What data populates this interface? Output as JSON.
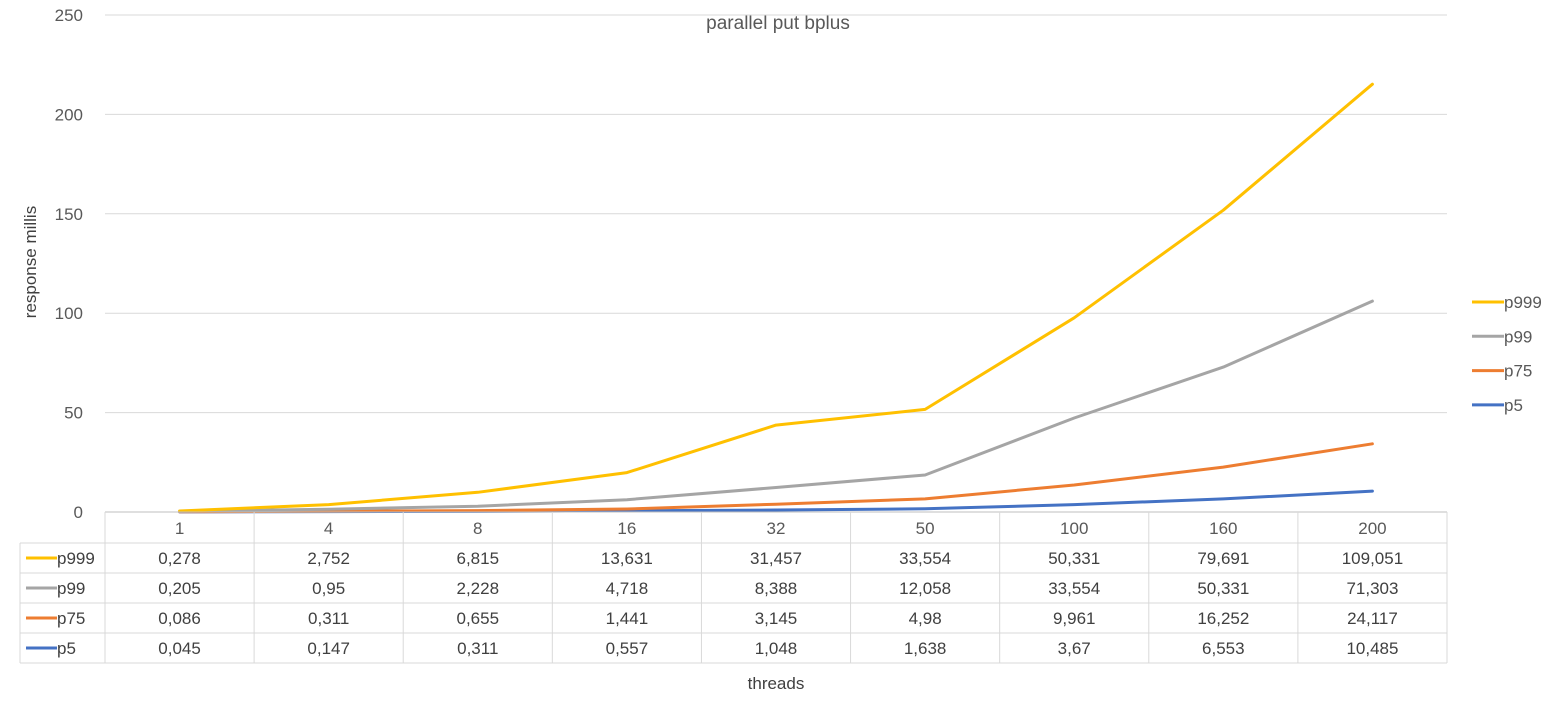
{
  "chart_data": {
    "type": "line",
    "title": "parallel put bplus",
    "xlabel": "threads",
    "ylabel": "response millis",
    "categories": [
      "1",
      "4",
      "8",
      "16",
      "32",
      "50",
      "100",
      "160",
      "200"
    ],
    "ylim": [
      0,
      250
    ],
    "yticks": [
      0,
      50,
      100,
      150,
      200,
      250
    ],
    "grid": true,
    "legend_position": "right",
    "series": [
      {
        "name": "p999",
        "color": "#FFC000",
        "values": [
          0.278,
          2.752,
          6.815,
          13.631,
          31.457,
          33.554,
          50.331,
          79.691,
          109.051
        ],
        "plotted": [
          0.5,
          3.7,
          9.9,
          19.8,
          43.7,
          51.6,
          97.7,
          151.8,
          215.2
        ],
        "labels": [
          "0,278",
          "2,752",
          "6,815",
          "13,631",
          "31,457",
          "33,554",
          "50,331",
          "79,691",
          "109,051"
        ]
      },
      {
        "name": "p99",
        "color": "#A5A5A5",
        "values": [
          0.205,
          0.95,
          2.228,
          4.718,
          8.388,
          12.058,
          33.554,
          50.331,
          71.303
        ],
        "plotted": [
          0.3,
          1.4,
          2.9,
          6.2,
          12.3,
          18.6,
          47.3,
          72.9,
          106.1
        ],
        "labels": [
          "0,205",
          "0,95",
          "2,228",
          "4,718",
          "8,388",
          "12,058",
          "33,554",
          "50,331",
          "71,303"
        ]
      },
      {
        "name": "p75",
        "color": "#ED7D31",
        "values": [
          0.086,
          0.311,
          0.655,
          1.441,
          3.145,
          4.98,
          9.961,
          16.252,
          24.117
        ],
        "plotted": [
          0.1,
          0.4,
          0.7,
          1.5,
          3.9,
          6.6,
          13.6,
          22.6,
          34.3
        ],
        "labels": [
          "0,086",
          "0,311",
          "0,655",
          "1,441",
          "3,145",
          "4,98",
          "9,961",
          "16,252",
          "24,117"
        ]
      },
      {
        "name": "p5",
        "color": "#4472C4",
        "values": [
          0.045,
          0.147,
          0.311,
          0.557,
          1.048,
          1.638,
          3.67,
          6.553,
          10.485
        ],
        "plotted": [
          0.05,
          0.2,
          0.3,
          0.6,
          1.0,
          1.6,
          3.7,
          6.6,
          10.5
        ],
        "labels": [
          "0,045",
          "0,147",
          "0,311",
          "0,557",
          "1,048",
          "1,638",
          "3,67",
          "6,553",
          "10,485"
        ]
      }
    ],
    "legend_order": [
      "p999",
      "p99",
      "p75",
      "p5"
    ],
    "table_order": [
      "p999",
      "p99",
      "p75",
      "p5"
    ]
  }
}
